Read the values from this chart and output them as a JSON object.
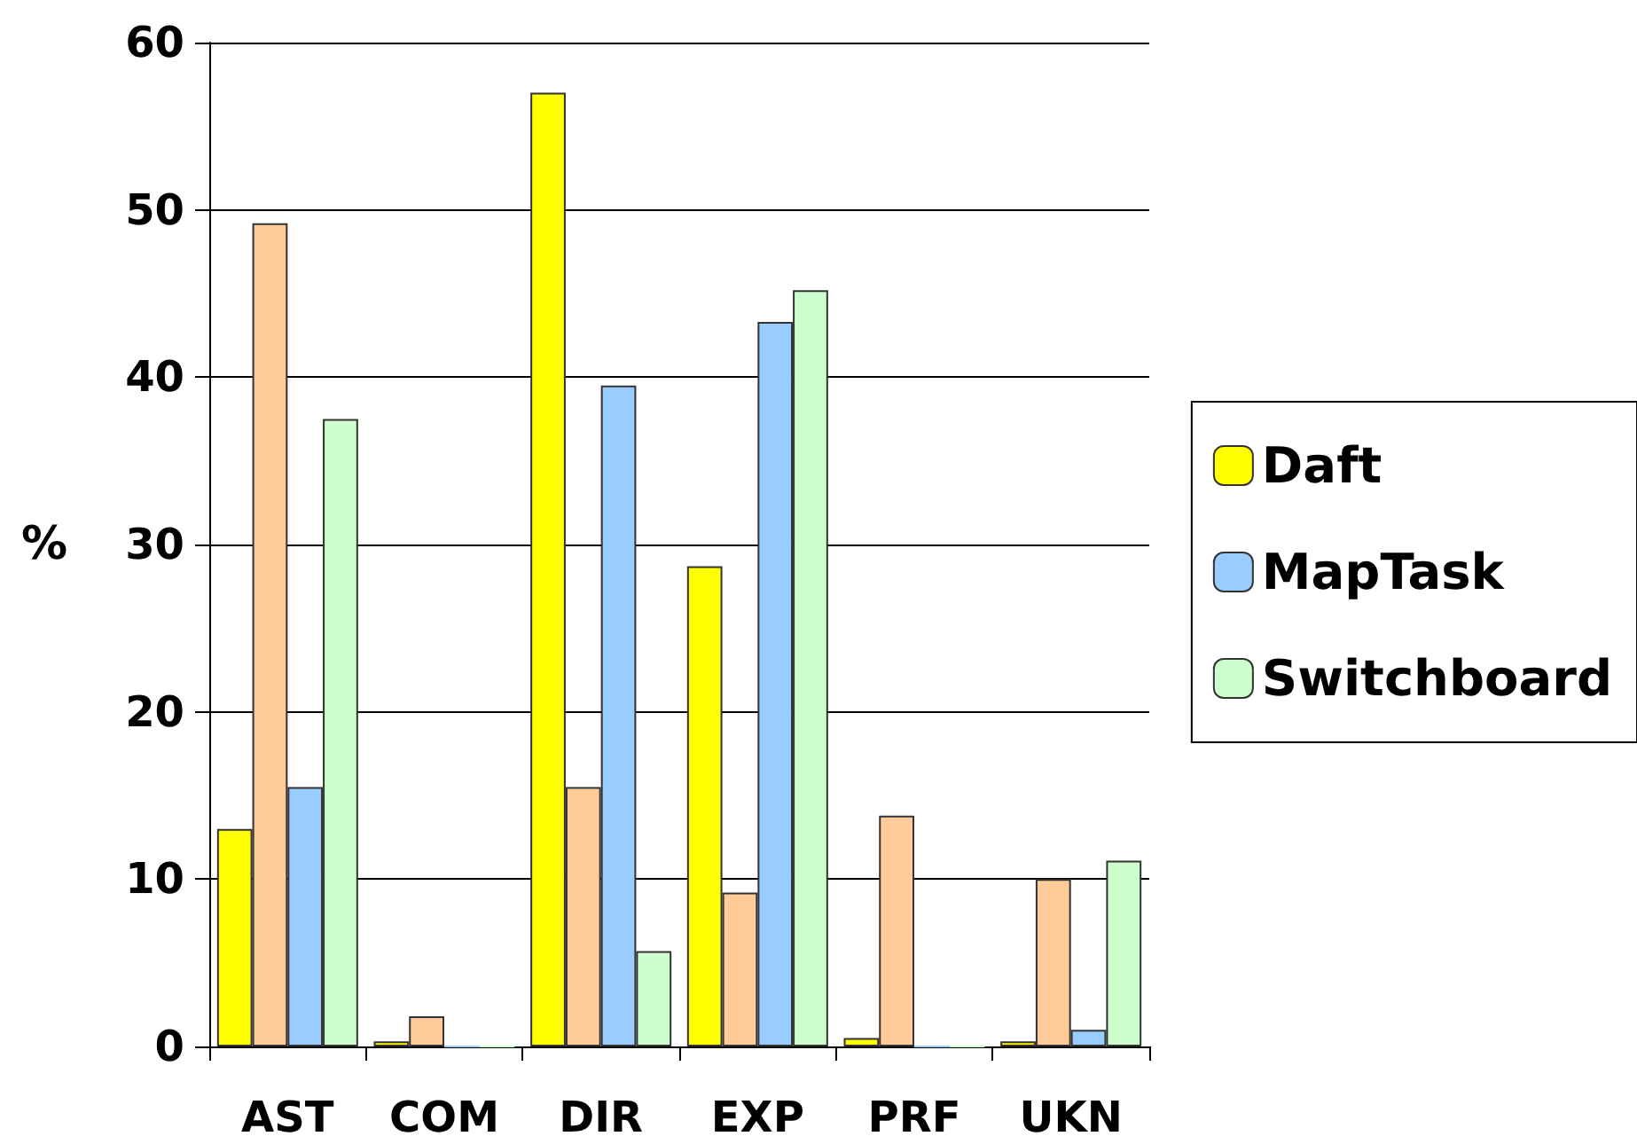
{
  "chart_data": {
    "type": "bar",
    "ylabel": "%",
    "categories": [
      "AST",
      "COM",
      "DIR",
      "EXP",
      "PRF",
      "UKN"
    ],
    "series": [
      {
        "name": "Daft",
        "color": "#ffff00",
        "values": [
          13.0,
          0.3,
          57.0,
          28.7,
          0.5,
          0.3
        ]
      },
      {
        "color": "#ffcc99",
        "values": [
          49.2,
          1.8,
          15.5,
          9.2,
          13.8,
          10.0
        ]
      },
      {
        "name": "MapTask",
        "color": "#99ccff",
        "values": [
          15.5,
          0,
          39.5,
          43.3,
          0,
          1.0
        ]
      },
      {
        "name": "Switchboard",
        "color": "#ccffcc",
        "values": [
          37.5,
          0,
          5.7,
          45.2,
          0,
          11.1
        ]
      }
    ],
    "ylim": [
      0,
      60
    ],
    "yticks": [
      0,
      10,
      20,
      30,
      40,
      50,
      60
    ],
    "grid": "y",
    "legend": "right"
  }
}
